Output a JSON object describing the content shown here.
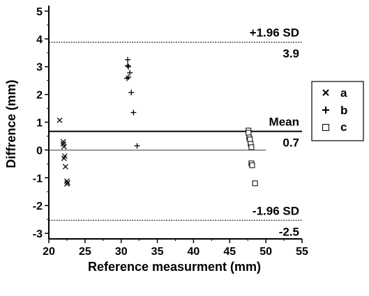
{
  "chart_data": {
    "type": "scatter",
    "title": "",
    "xlabel": "Reference measurment (mm)",
    "ylabel": "Diffrence (mm)",
    "xlim": [
      20,
      55
    ],
    "ylim": [
      -3.2,
      5.2
    ],
    "xticks": [
      20,
      25,
      30,
      35,
      40,
      45,
      50,
      55
    ],
    "yticks": [
      -3,
      -2,
      -1,
      0,
      1,
      2,
      3,
      4,
      5
    ],
    "series": [
      {
        "name": "a",
        "marker": "x",
        "points": [
          [
            21.5,
            1.07
          ],
          [
            22.0,
            0.3
          ],
          [
            22.0,
            0.22
          ],
          [
            22.1,
            0.12
          ],
          [
            22.2,
            -0.22
          ],
          [
            22.1,
            -0.3
          ],
          [
            22.3,
            -0.6
          ],
          [
            22.5,
            -1.12
          ],
          [
            22.6,
            -1.18
          ],
          [
            22.5,
            -1.22
          ]
        ]
      },
      {
        "name": "b",
        "marker": "+",
        "points": [
          [
            30.9,
            3.25
          ],
          [
            30.9,
            3.04
          ],
          [
            31.0,
            3.0
          ],
          [
            31.2,
            2.78
          ],
          [
            31.0,
            2.62
          ],
          [
            30.8,
            2.58
          ],
          [
            31.4,
            2.07
          ],
          [
            31.7,
            1.35
          ],
          [
            32.2,
            0.15
          ]
        ]
      },
      {
        "name": "c",
        "marker": "square",
        "points": [
          [
            47.6,
            0.7
          ],
          [
            47.6,
            0.62
          ],
          [
            47.7,
            0.45
          ],
          [
            47.8,
            0.38
          ],
          [
            47.9,
            0.22
          ],
          [
            48.0,
            0.1
          ],
          [
            48.0,
            -0.48
          ],
          [
            48.1,
            -0.55
          ],
          [
            48.5,
            -1.2
          ]
        ]
      }
    ],
    "reference_lines": [
      {
        "name": "+1.96 SD",
        "label": "+1.96 SD",
        "value_label": "3.9",
        "y": 3.88,
        "style": "dashed"
      },
      {
        "name": "Mean",
        "label": "Mean",
        "value_label": "0.7",
        "y": 0.67,
        "style": "solid"
      },
      {
        "name": "-1.96 SD",
        "label": "-1.96 SD",
        "value_label": "-2.5",
        "y": -2.53,
        "style": "dashed"
      }
    ],
    "zero_line": {
      "y": 0,
      "x_end": 50
    },
    "legend_position": "right",
    "grid": false
  }
}
